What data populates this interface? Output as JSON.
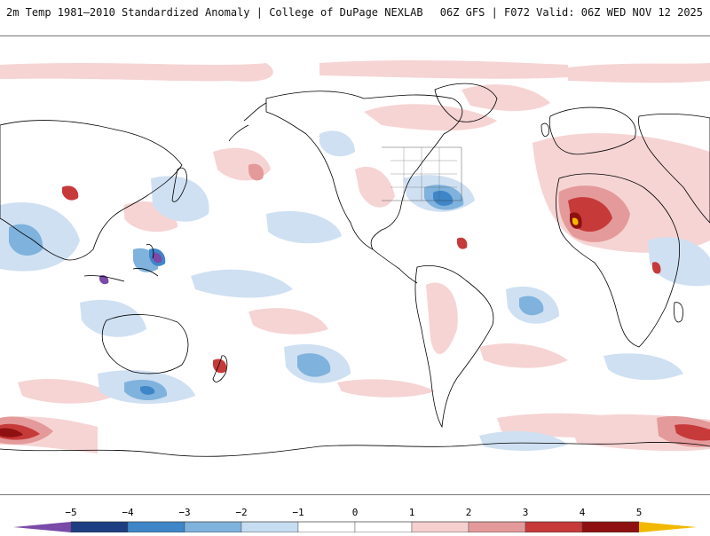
{
  "header": {
    "title": "2m Temp 1981–2010 Standardized Anomaly | College of DuPage NEXLAB",
    "run_info": "06Z GFS | F072 Valid: 06Z WED NOV 12 2025"
  },
  "map": {
    "variable": "2m Temperature Standardized Anomaly",
    "projection": "global"
  },
  "colorbar": {
    "ticks": [
      "−5",
      "−4",
      "−3",
      "−2",
      "−1",
      "0",
      "1",
      "2",
      "3",
      "4",
      "5"
    ],
    "colors": {
      "lt_minus5": "#7a4aa8",
      "minus5_minus4": "#1d3e82",
      "minus4_minus3": "#3f86c8",
      "minus3_minus2": "#7fb2dd",
      "minus2_minus1": "#c6dcf0",
      "minus1_0": "#ffffff",
      "zero_1": "#ffffff",
      "one_two": "#f6cfcf",
      "two_three": "#e49a9a",
      "three_four": "#c73a3a",
      "four_five": "#8e1010",
      "gt_five": "#f2b800"
    }
  }
}
